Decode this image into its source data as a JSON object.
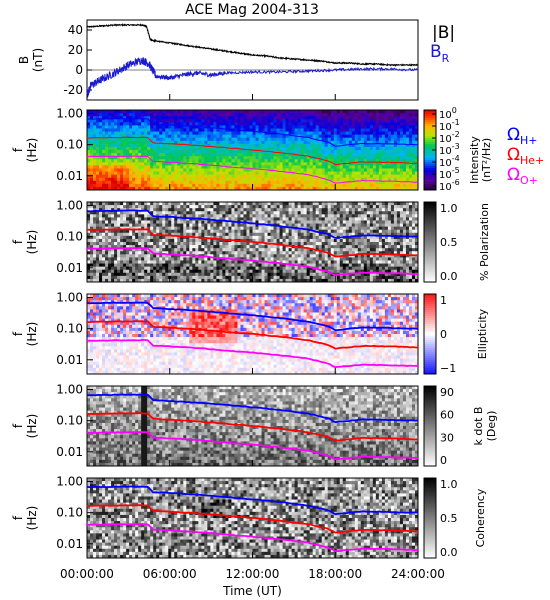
{
  "title": "ACE Mag 2004-313",
  "colors": {
    "black": "#000000",
    "blue": "#0000ff",
    "red": "#ff0000",
    "magenta": "#ff00ff",
    "BR": "#1a1ad0"
  },
  "chart_data": [
    {
      "type": "line",
      "panel": "B",
      "ylabel": "B",
      "yunit": "(nT)",
      "ylim": [
        -30,
        50
      ],
      "yticks": [
        "40",
        "20",
        "0",
        "-20"
      ],
      "ytick_values": [
        40,
        20,
        0,
        -20
      ],
      "xlim_hours": [
        0,
        24
      ],
      "legend": [
        "|B|",
        "B_R"
      ],
      "legend_text": {
        "mag": "|B|",
        "br_main": "B",
        "br_sub": "R"
      },
      "series": [
        {
          "name": "|B|",
          "x": [
            0,
            1,
            2,
            3,
            4,
            4.3,
            4.6,
            5,
            6,
            7,
            8,
            9,
            10,
            11,
            12,
            13,
            14,
            15,
            16,
            17,
            18,
            19,
            20,
            21,
            22,
            23,
            24
          ],
          "y": [
            43,
            44,
            45,
            45,
            45,
            44,
            30,
            29,
            27,
            25,
            23,
            21,
            19,
            17,
            15,
            14,
            12,
            11,
            10,
            9,
            7,
            7,
            6,
            6,
            5,
            5,
            5
          ]
        },
        {
          "name": "B_R",
          "x": [
            0,
            0.3,
            1,
            2,
            3,
            4,
            4.5,
            5,
            6,
            7,
            8,
            9,
            10,
            12,
            14,
            16,
            18,
            20,
            22,
            24
          ],
          "y": [
            -25,
            -15,
            -10,
            -3,
            5,
            10,
            6,
            -6,
            -8,
            -5,
            -3,
            -5,
            -3,
            -2,
            -2,
            -1,
            0,
            1,
            1,
            0
          ]
        }
      ]
    },
    {
      "type": "heatmap",
      "panel": "Intensity",
      "ylabel": "f",
      "yunit": "(Hz)",
      "yticks": [
        "1.00",
        "0.10",
        "0.01"
      ],
      "colorbar_label": "Intensity",
      "colorbar_unit": "(nT²/Hz)",
      "colorbar_ticks": [
        {
          "base": "10",
          "exp": "0"
        },
        {
          "base": "10",
          "exp": "-1"
        },
        {
          "base": "10",
          "exp": "-2"
        },
        {
          "base": "10",
          "exp": "-3"
        },
        {
          "base": "10",
          "exp": "-4"
        },
        {
          "base": "10",
          "exp": "-5"
        },
        {
          "base": "10",
          "exp": "-6"
        }
      ],
      "gyrofrequency_labels": [
        {
          "symbol": "Ω",
          "sub": "H+",
          "color": "#0000ff"
        },
        {
          "symbol": "Ω",
          "sub": "He+",
          "color": "#ff0000"
        },
        {
          "symbol": "Ω",
          "sub": "O+",
          "color": "#ff00ff"
        }
      ]
    },
    {
      "type": "heatmap",
      "panel": "Polarization",
      "ylabel": "f",
      "yunit": "(Hz)",
      "yticks": [
        "1.00",
        "0.10",
        "0.01"
      ],
      "colorbar_label": "% Polarization",
      "colorbar_ticks": [
        "1.0",
        "0.5",
        "0.0"
      ]
    },
    {
      "type": "heatmap",
      "panel": "Ellipticity",
      "ylabel": "f",
      "yunit": "(Hz)",
      "yticks": [
        "1.00",
        "0.10",
        "0.01"
      ],
      "colorbar_label": "Ellipticity",
      "colorbar_ticks": [
        "1",
        "0",
        "−1"
      ]
    },
    {
      "type": "heatmap",
      "panel": "kdotB",
      "ylabel": "f",
      "yunit": "(Hz)",
      "yticks": [
        "1.00",
        "0.10",
        "0.01"
      ],
      "colorbar_label": "k dot B",
      "colorbar_unit": "(Deg)",
      "colorbar_ticks": [
        "90",
        "60",
        "30",
        "0"
      ]
    },
    {
      "type": "heatmap",
      "panel": "Coherency",
      "ylabel": "f",
      "yunit": "(Hz)",
      "yticks": [
        "1.00",
        "0.10",
        "0.01"
      ],
      "colorbar_label": "Coherency",
      "colorbar_ticks": [
        "1.0",
        "0.5",
        "0.0"
      ]
    }
  ],
  "gyrofrequencies": {
    "x": [
      0,
      2,
      4,
      4.5,
      4.7,
      6,
      8,
      10,
      12,
      14,
      16,
      17.5,
      18,
      20,
      22,
      24
    ],
    "H+": [
      0.66,
      0.68,
      0.69,
      0.68,
      0.46,
      0.43,
      0.38,
      0.32,
      0.27,
      0.22,
      0.17,
      0.12,
      0.09,
      0.11,
      0.105,
      0.1
    ],
    "He+": [
      0.165,
      0.17,
      0.172,
      0.17,
      0.115,
      0.108,
      0.095,
      0.08,
      0.068,
      0.055,
      0.043,
      0.03,
      0.023,
      0.028,
      0.027,
      0.025
    ],
    "O+": [
      0.041,
      0.042,
      0.043,
      0.042,
      0.029,
      0.027,
      0.024,
      0.02,
      0.017,
      0.014,
      0.011,
      0.0075,
      0.0058,
      0.007,
      0.0067,
      0.0063
    ]
  },
  "x_axis": {
    "label": "Time (UT)",
    "ticks": [
      "00:00:00",
      "06:00:00",
      "12:00:00",
      "18:00:00",
      "24:00:00"
    ],
    "tick_values": [
      0,
      6,
      12,
      18,
      24
    ]
  }
}
